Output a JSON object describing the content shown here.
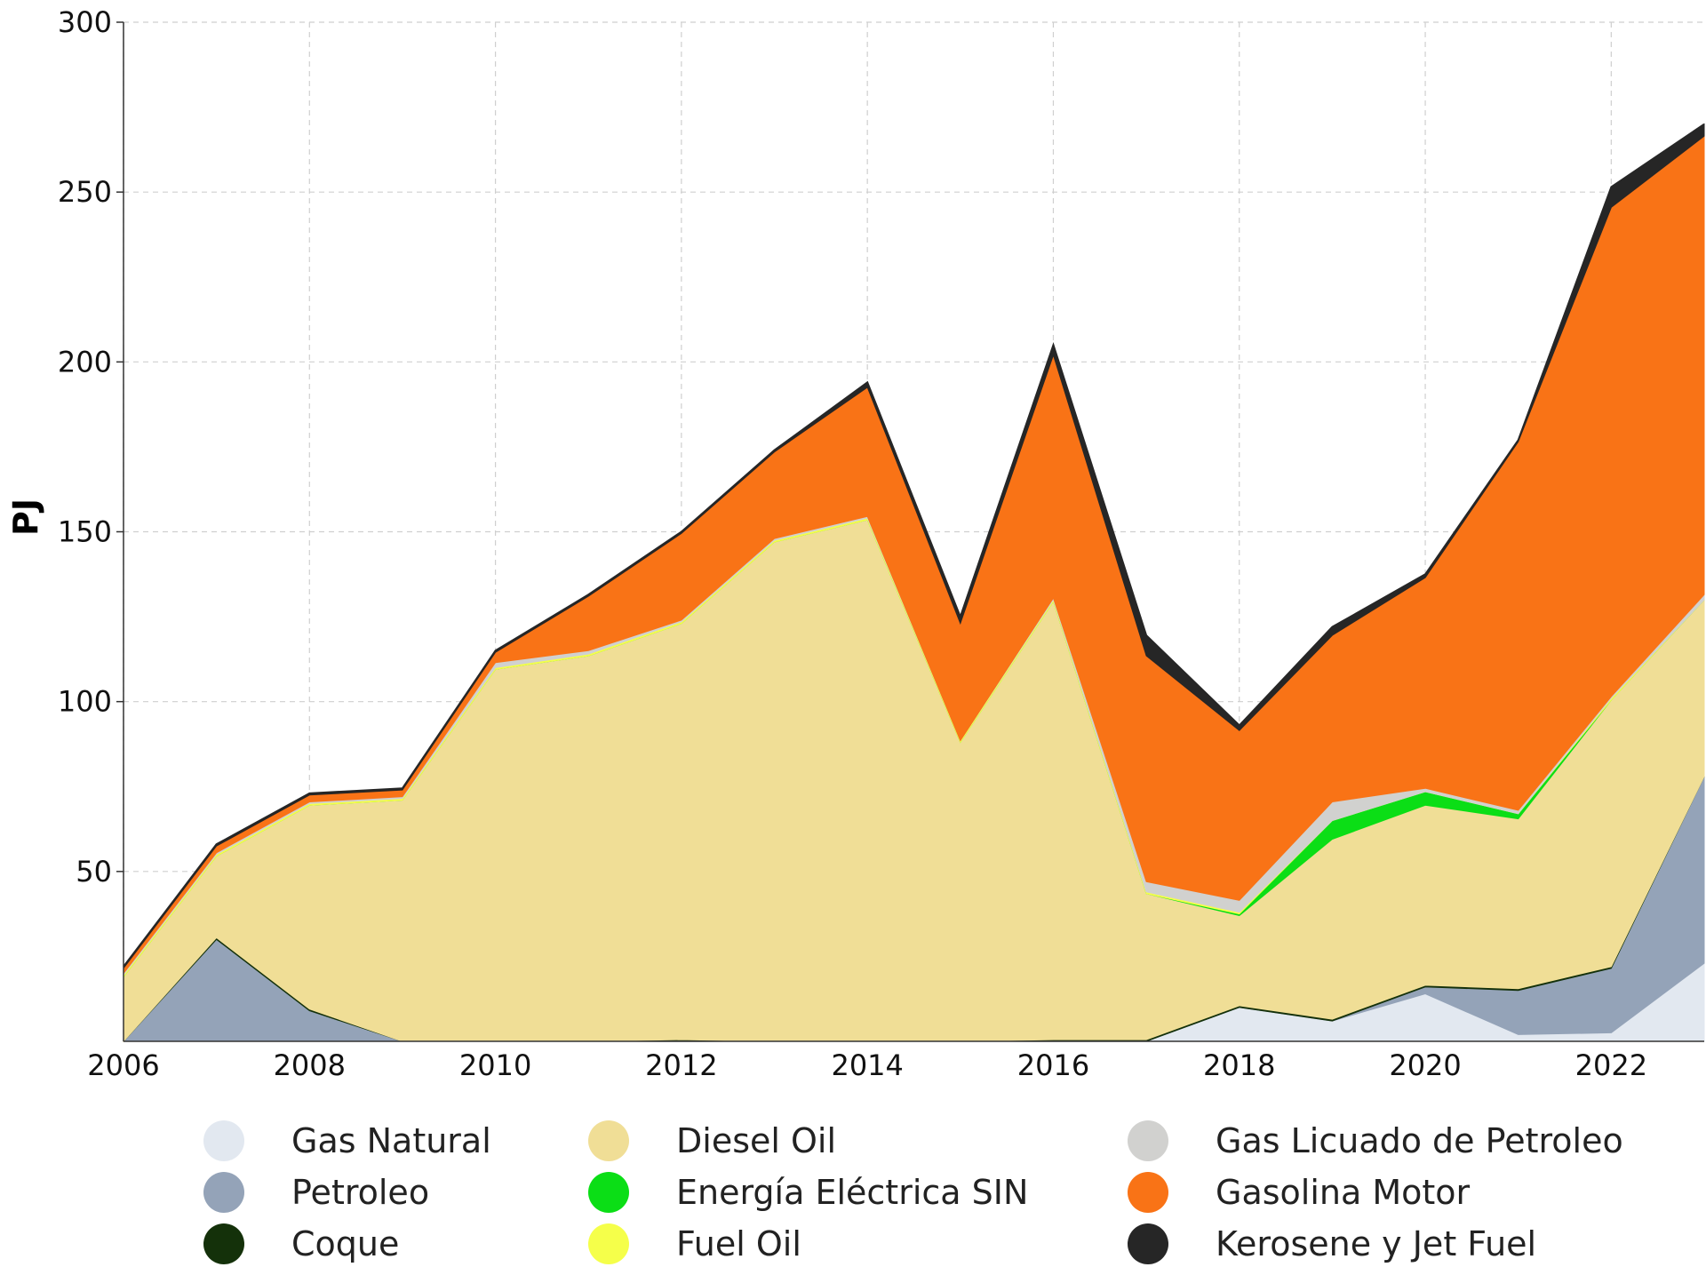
{
  "chart_data": {
    "type": "area",
    "stacked": true,
    "title": "",
    "xlabel": "",
    "ylabel": "PJ",
    "xlim": [
      2006,
      2023
    ],
    "ylim": [
      0,
      300
    ],
    "xticks": [
      2006,
      2008,
      2010,
      2012,
      2014,
      2016,
      2018,
      2020,
      2022
    ],
    "yticks": [
      50,
      100,
      150,
      200,
      250,
      300
    ],
    "grid": true,
    "legend_position": "bottom",
    "x": [
      2006,
      2007,
      2008,
      2009,
      2010,
      2011,
      2012,
      2013,
      2014,
      2015,
      2016,
      2017,
      2018,
      2019,
      2020,
      2021,
      2022,
      2023
    ],
    "series": [
      {
        "name": "Gas Natural",
        "color": "#e2e8f0",
        "values": [
          0,
          0,
          0,
          0,
          0,
          0,
          0,
          0,
          0,
          0,
          0,
          0,
          10,
          6,
          14,
          2,
          2.5,
          23
        ]
      },
      {
        "name": "Petroleo",
        "color": "#94a3b8",
        "values": [
          0,
          30,
          9,
          0,
          0,
          0,
          0,
          0,
          0,
          0,
          0,
          0,
          0,
          0,
          2,
          13,
          19,
          55
        ]
      },
      {
        "name": "Coque",
        "color": "#14310a",
        "values": [
          0,
          0.5,
          0.5,
          0,
          0,
          0,
          0.5,
          0,
          0,
          0,
          0.5,
          0.5,
          0.5,
          0.5,
          0.5,
          0.5,
          0.5,
          0
        ]
      },
      {
        "name": "Diesel Oil",
        "color": "#f0de96",
        "values": [
          19,
          24,
          60,
          71,
          109.5,
          113.5,
          122.5,
          147,
          153.5,
          88,
          129,
          43,
          26.5,
          53,
          53,
          50,
          78.5,
          52
        ]
      },
      {
        "name": "Energía Eléctrica SIN",
        "color": "#0bde16",
        "values": [
          0,
          0,
          0,
          0,
          0,
          0,
          0,
          0,
          0,
          0,
          0,
          0,
          0.5,
          5.5,
          4,
          1.5,
          0,
          0
        ]
      },
      {
        "name": "Fuel Oil",
        "color": "#f5ff4a",
        "values": [
          0.5,
          0.5,
          0.5,
          0.5,
          0.5,
          0.5,
          0.5,
          0.5,
          0.5,
          0.5,
          0.5,
          0.5,
          0.5,
          0,
          0,
          0,
          0.5,
          0
        ]
      },
      {
        "name": "Gas Licuado de Petroleo",
        "color": "#d1d1cf",
        "values": [
          0.5,
          0.5,
          0.5,
          0.5,
          1.5,
          1,
          0.5,
          0.5,
          0.5,
          0,
          0.5,
          3,
          3.5,
          5.5,
          1,
          1,
          0.5,
          1.5
        ]
      },
      {
        "name": "Gasolina Motor",
        "color": "#f97316",
        "values": [
          1.5,
          2,
          2,
          2,
          3,
          16,
          25.5,
          25.5,
          38,
          34.5,
          71.5,
          66.5,
          50,
          49,
          62,
          108.5,
          144,
          135
        ]
      },
      {
        "name": "Kerosene y Jet Fuel",
        "color": "#262626",
        "values": [
          0.5,
          0.5,
          0.5,
          0.5,
          0.5,
          0.5,
          0.5,
          0.5,
          1.5,
          2,
          3,
          6,
          1.5,
          2.5,
          1,
          0.5,
          6,
          3.5
        ]
      }
    ]
  }
}
